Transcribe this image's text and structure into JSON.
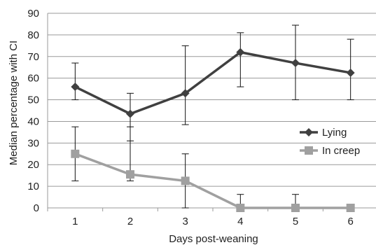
{
  "chart_data": {
    "type": "line",
    "xlabel": "Days post-weaning",
    "ylabel": "Median percentage with CI",
    "categories": [
      "1",
      "2",
      "3",
      "4",
      "5",
      "6"
    ],
    "ylim": [
      0,
      90
    ],
    "yticks": [
      "0",
      "10",
      "20",
      "30",
      "40",
      "50",
      "60",
      "70",
      "80",
      "90"
    ],
    "grid": true,
    "legend": "center-right",
    "series": [
      {
        "name": "Lying",
        "marker": "diamond",
        "color": "#404040",
        "values": [
          56,
          43.5,
          53,
          72,
          67,
          62.5
        ],
        "ci_low": [
          50,
          31,
          38.5,
          56,
          50,
          50
        ],
        "ci_high": [
          67,
          53,
          75,
          81,
          84.5,
          78
        ]
      },
      {
        "name": "In creep",
        "marker": "square",
        "color": "#a0a0a0",
        "values": [
          25,
          15.5,
          12.5,
          0,
          0,
          0
        ],
        "ci_low": [
          12.5,
          12.5,
          0,
          0,
          0,
          0
        ],
        "ci_high": [
          37.5,
          37.5,
          25,
          6.25,
          6.25,
          0
        ]
      }
    ]
  }
}
